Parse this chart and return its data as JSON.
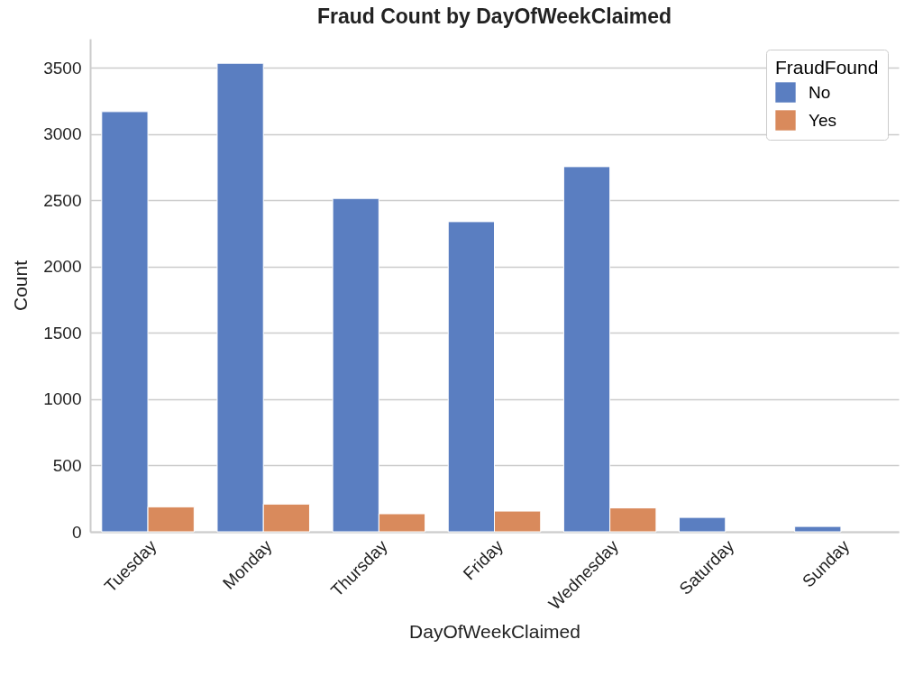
{
  "chart_data": {
    "type": "bar",
    "title": "Fraud Count by DayOfWeekClaimed",
    "xlabel": "DayOfWeekClaimed",
    "ylabel": "Count",
    "legend_title": "FraudFound",
    "categories": [
      "Tuesday",
      "Monday",
      "Thursday",
      "Friday",
      "Wednesday",
      "Saturday",
      "Sunday"
    ],
    "series": [
      {
        "name": "No",
        "color": "#5a7ec1",
        "values": [
          3170,
          3535,
          2515,
          2340,
          2755,
          108,
          40
        ]
      },
      {
        "name": "Yes",
        "color": "#d98a5c",
        "values": [
          188,
          209,
          136,
          156,
          180,
          null,
          null
        ]
      }
    ],
    "ylim": [
      0,
      3720
    ],
    "yticks": [
      0,
      500,
      1000,
      1500,
      2000,
      2500,
      3000,
      3500
    ],
    "grid": "y",
    "legend": "top right"
  }
}
